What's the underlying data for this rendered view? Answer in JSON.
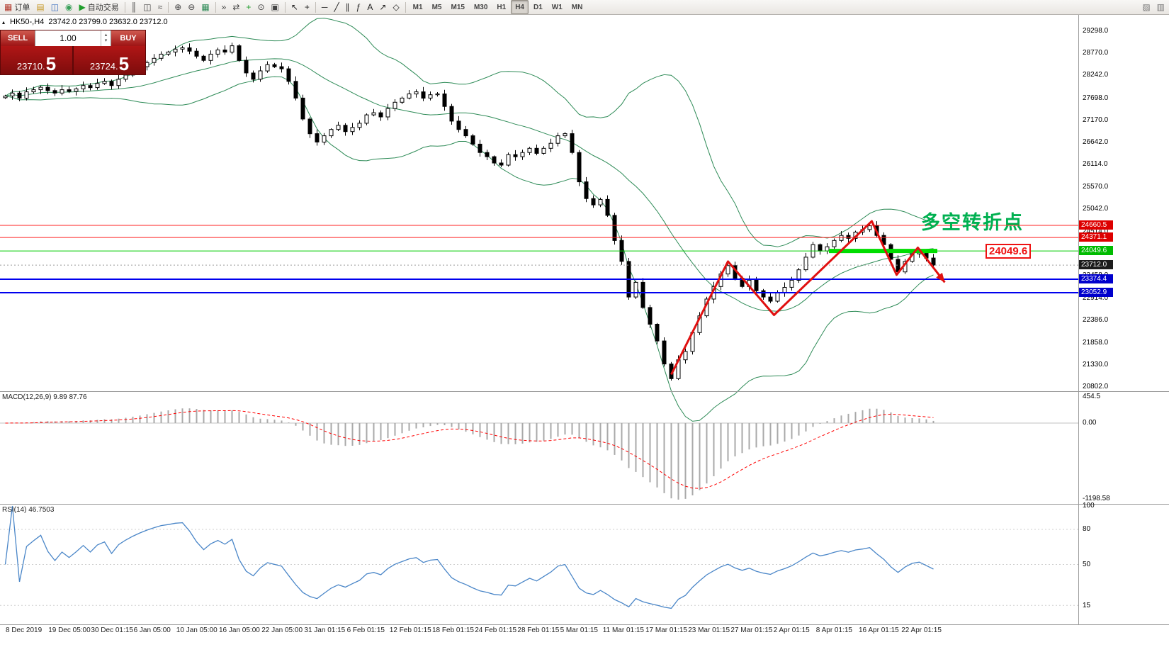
{
  "toolbar": {
    "items": [
      {
        "type": "btn",
        "name": "new-order-button",
        "glyph": "▦",
        "color": "#b23b2e",
        "label": "订单"
      },
      {
        "type": "btn",
        "name": "funds-button",
        "glyph": "▤",
        "color": "#c79a2a"
      },
      {
        "type": "btn",
        "name": "accounts-button",
        "glyph": "◫",
        "color": "#3a6ebf"
      },
      {
        "type": "btn",
        "name": "community-button",
        "glyph": "◉",
        "color": "#3aa05a"
      },
      {
        "type": "btn",
        "name": "auto-trading-button",
        "glyph": "▶",
        "color": "#1f9e2c",
        "label": "自动交易"
      },
      {
        "type": "sep"
      },
      {
        "type": "btn",
        "name": "bar-chart-button",
        "glyph": "║",
        "color": "#444444"
      },
      {
        "type": "btn",
        "name": "candlestick-chart-button",
        "glyph": "◫",
        "color": "#444444"
      },
      {
        "type": "btn",
        "name": "line-chart-button",
        "glyph": "≈",
        "color": "#444444"
      },
      {
        "type": "sep"
      },
      {
        "type": "btn",
        "name": "zoom-in-button",
        "glyph": "⊕",
        "color": "#444444"
      },
      {
        "type": "btn",
        "name": "zoom-out-button",
        "glyph": "⊖",
        "color": "#444444"
      },
      {
        "type": "btn",
        "name": "grid-button",
        "glyph": "▦",
        "color": "#2e8b57"
      },
      {
        "type": "sep"
      },
      {
        "type": "btn",
        "name": "auto-scroll-button",
        "glyph": "»",
        "color": "#444444"
      },
      {
        "type": "btn",
        "name": "chart-shift-button",
        "glyph": "⇄",
        "color": "#444444"
      },
      {
        "type": "btn",
        "name": "indicators-button",
        "glyph": "+",
        "color": "#1f9e2c"
      },
      {
        "type": "btn",
        "name": "periods-button",
        "glyph": "⊙",
        "color": "#444444"
      },
      {
        "type": "btn",
        "name": "templates-button",
        "glyph": "▣",
        "color": "#444444"
      },
      {
        "type": "sep"
      },
      {
        "type": "btn",
        "name": "cursor-button",
        "glyph": "↖",
        "color": "#222222"
      },
      {
        "type": "btn",
        "name": "crosshair-button",
        "glyph": "+",
        "color": "#222222"
      },
      {
        "type": "sep"
      },
      {
        "type": "btn",
        "name": "hline-tool-button",
        "glyph": "─",
        "color": "#222222"
      },
      {
        "type": "btn",
        "name": "trendline-tool-button",
        "glyph": "╱",
        "color": "#222222"
      },
      {
        "type": "btn",
        "name": "channel-tool-button",
        "glyph": "∥",
        "color": "#222222"
      },
      {
        "type": "btn",
        "name": "fibonacci-tool-button",
        "glyph": "ƒ",
        "color": "#222222"
      },
      {
        "type": "btn",
        "name": "text-tool-button",
        "glyph": "A",
        "color": "#222222"
      },
      {
        "type": "btn",
        "name": "arrows-tool-button",
        "glyph": "↗",
        "color": "#222222"
      },
      {
        "type": "btn",
        "name": "shapes-tool-button",
        "glyph": "◇",
        "color": "#222222"
      },
      {
        "type": "sep"
      },
      {
        "type": "timeframes"
      },
      {
        "type": "btn",
        "name": "toolbar-overflow-button-1",
        "glyph": "▨",
        "color": "#777777",
        "right": true
      },
      {
        "type": "btn",
        "name": "toolbar-overflow-button-2",
        "glyph": "▥",
        "color": "#777777"
      }
    ],
    "timeframes": [
      "M1",
      "M5",
      "M15",
      "M30",
      "H1",
      "H4",
      "D1",
      "W1",
      "MN"
    ],
    "active_timeframe": "H4"
  },
  "trade_panel": {
    "sell_label": "SELL",
    "buy_label": "BUY",
    "volume": "1.00",
    "up_glyph": "▴",
    "down_glyph": "▾",
    "sell_price_small": "23710.",
    "sell_price_big": "5",
    "buy_price_small": "23724.",
    "buy_price_big": "5"
  },
  "chart": {
    "title_marker": "▴",
    "title": "HK50-,H4  23742.0 23799.0 23632.0 23712.0",
    "annotation": "多空转折点",
    "callout": "24049.6",
    "price_axis": [
      29298.0,
      28770.0,
      28242.0,
      27698.0,
      27170.0,
      26642.0,
      26114.0,
      25570.0,
      25042.0,
      24514.0,
      23986.0,
      23458.0,
      22914.0,
      22386.0,
      21858.0,
      21330.0,
      20802.0
    ],
    "price_badges": [
      {
        "text": "24660.5",
        "bg": "#dd0000"
      },
      {
        "text": "24371.1",
        "bg": "#dd0000"
      },
      {
        "text": "24049.6",
        "bg": "#00bb00"
      },
      {
        "text": "23712.0",
        "bg": "#1c1c1c"
      },
      {
        "text": "23374.4",
        "bg": "#0000cc"
      },
      {
        "text": "23052.9",
        "bg": "#0000cc"
      }
    ],
    "time_axis": [
      "8 Dec 2019",
      "19 Dec 05:00",
      "30 Dec 01:15",
      "6 Jan 05:00",
      "10 Jan 05:00",
      "16 Jan 05:00",
      "22 Jan 05:00",
      "31 Jan 01:15",
      "6 Feb 01:15",
      "12 Feb 01:15",
      "18 Feb 01:15",
      "24 Feb 01:15",
      "28 Feb 01:15",
      "5 Mar 01:15",
      "11 Mar 01:15",
      "17 Mar 01:15",
      "23 Mar 01:15",
      "27 Mar 01:15",
      "2 Apr 01:15",
      "8 Apr 01:15",
      "16 Apr 01:15",
      "22 Apr 01:15"
    ]
  },
  "panes": {
    "macd": {
      "label": "MACD(12,26,9) 9.89 87.76",
      "axis": [
        "454.5",
        "0.00",
        "-1198.58"
      ]
    },
    "rsi": {
      "label": "RSI(14) 46.7503",
      "axis": [
        "100",
        "80",
        "50",
        "15"
      ]
    }
  },
  "chart_data": {
    "type": "candlestick",
    "symbol": "HK50-",
    "timeframe": "H4",
    "current_ohlc": {
      "open": 23742.0,
      "high": 23799.0,
      "low": 23632.0,
      "close": 23712.0
    },
    "indicators": {
      "bollinger": "(20,2)",
      "macd": "(12,26,9)",
      "rsi": "(14)"
    },
    "y_axis_range": [
      20802.0,
      29298.0
    ],
    "closes": [
      27750,
      27820,
      27700,
      27850,
      27900,
      27960,
      27880,
      27820,
      27900,
      27860,
      27920,
      28000,
      27950,
      28050,
      28100,
      28000,
      28150,
      28250,
      28350,
      28450,
      28550,
      28650,
      28750,
      28800,
      28870,
      28900,
      28820,
      28700,
      28600,
      28750,
      28850,
      28800,
      28950,
      28600,
      28300,
      28150,
      28350,
      28500,
      28450,
      28400,
      28100,
      27700,
      27200,
      26850,
      26650,
      26800,
      26950,
      27050,
      26900,
      27000,
      27100,
      27300,
      27350,
      27250,
      27450,
      27600,
      27700,
      27800,
      27850,
      27700,
      27780,
      27800,
      27500,
      27150,
      26950,
      26800,
      26600,
      26400,
      26300,
      26150,
      26100,
      26350,
      26300,
      26400,
      26500,
      26380,
      26500,
      26620,
      26800,
      26850,
      26400,
      25700,
      25300,
      25150,
      25280,
      24900,
      24300,
      23800,
      22950,
      23300,
      22700,
      22300,
      21900,
      21350,
      21000,
      21450,
      21650,
      22100,
      22500,
      22900,
      23200,
      23500,
      23700,
      23400,
      23200,
      23350,
      23100,
      22950,
      22850,
      23050,
      23180,
      23350,
      23600,
      23900,
      24200,
      24050,
      24150,
      24300,
      24420,
      24350,
      24500,
      24560,
      24650,
      24420,
      24200,
      23850,
      23550,
      23800,
      23980,
      24040,
      23880,
      23712
    ],
    "hlines": [
      {
        "price": 24660.5,
        "color": "#ff2020",
        "width": 1
      },
      {
        "price": 24371.1,
        "color": "#ff2020",
        "width": 1
      },
      {
        "price": 24049.6,
        "color": "#00cc00",
        "width": 1
      },
      {
        "price": 23712.0,
        "color": "#9a9a9a",
        "width": 1,
        "dash": "2,3"
      },
      {
        "price": 23374.4,
        "color": "#0000ee",
        "width": 2
      },
      {
        "price": 23052.9,
        "color": "#0000ee",
        "width": 2
      }
    ],
    "thick_segment": {
      "price": 24049.6,
      "i1": 116.5,
      "i2": 131.8,
      "color": "#00dd00"
    },
    "zigzag": [
      {
        "i": 94,
        "p": 21100
      },
      {
        "i": 102,
        "p": 23800
      },
      {
        "i": 108.5,
        "p": 22520
      },
      {
        "i": 122.3,
        "p": 24760
      },
      {
        "i": 125.8,
        "p": 23480
      },
      {
        "i": 128.8,
        "p": 24130
      },
      {
        "i": 132.6,
        "p": 23300
      }
    ],
    "colors": {
      "bollinger": "#2e8b57",
      "zigzag": "#e01010",
      "rsi": "#4a86c8",
      "macd_hist": "#a9a9a9",
      "macd_signal": "#ff0000",
      "annotation_green": "#00b050",
      "callout_red": "#ee1111"
    }
  }
}
